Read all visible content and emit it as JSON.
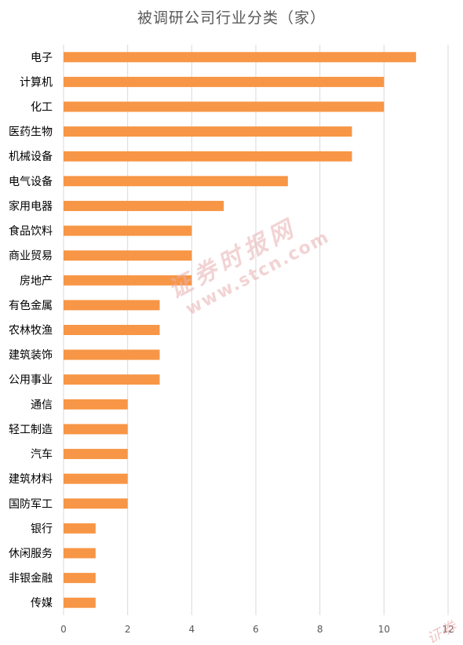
{
  "chart_data": {
    "type": "bar",
    "orientation": "horizontal",
    "title": "被调研公司行业分类（家）",
    "categories": [
      "电子",
      "计算机",
      "化工",
      "医药生物",
      "机械设备",
      "电气设备",
      "家用电器",
      "食品饮料",
      "商业贸易",
      "房地产",
      "有色金属",
      "农林牧渔",
      "建筑装饰",
      "公用事业",
      "通信",
      "轻工制造",
      "汽车",
      "建筑材料",
      "国防军工",
      "银行",
      "休闲服务",
      "非银金融",
      "传媒"
    ],
    "values": [
      11,
      10,
      10,
      9,
      9,
      7,
      5,
      4,
      4,
      4,
      3,
      3,
      3,
      3,
      2,
      2,
      2,
      2,
      2,
      1,
      1,
      1,
      1
    ],
    "xlim": [
      0,
      12
    ],
    "xticks": [
      "0",
      "2",
      "4",
      "6",
      "8",
      "10",
      "12"
    ],
    "grid": "vertical",
    "legend": "none",
    "bar_color": "#f79646",
    "grid_color": "#d9d9d9",
    "label_color": "#000000",
    "tick_color": "#595959"
  },
  "watermark": {
    "line1": "证券时报网",
    "line2": "www.stcn.com",
    "corner": "证券"
  }
}
